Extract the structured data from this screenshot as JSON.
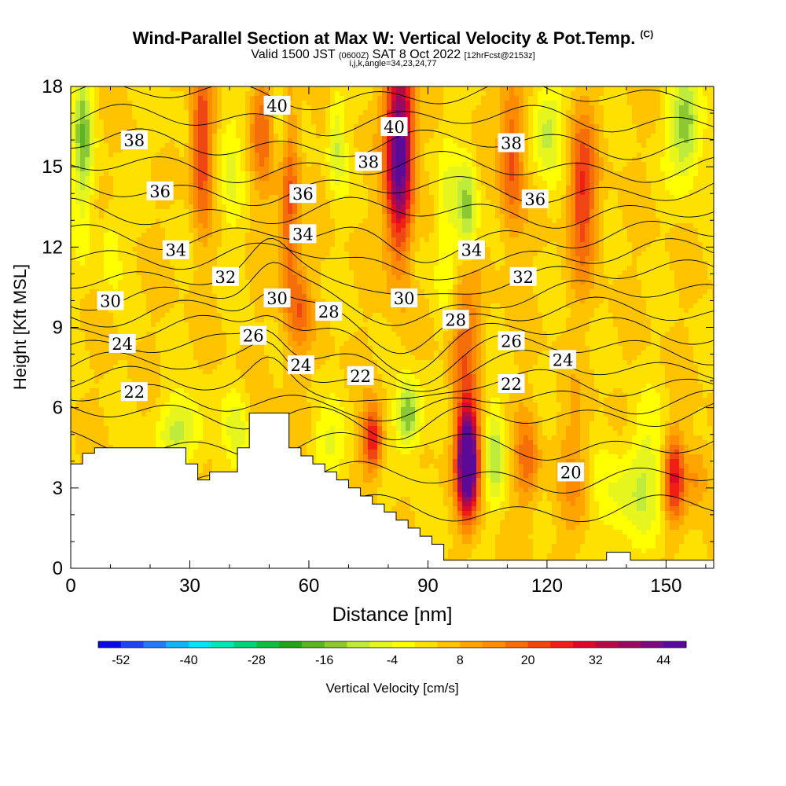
{
  "header": {
    "title": "Wind-Parallel Section at Max W: Vertical Velocity & Pot.Temp.",
    "copyright": "(C)",
    "valid_prefix": "Valid 1500 JST",
    "valid_utc": "(0600Z)",
    "valid_date": "SAT 8 Oct 2022",
    "forecast": "[12hrFcst@2153z]",
    "indices": "i,j,k,angle=34,23,24,77"
  },
  "chart_data": {
    "type": "heatmap",
    "xlabel": "Distance [nm]",
    "ylabel": "Height [Kft MSL]",
    "xlim": [
      0,
      162
    ],
    "ylim": [
      0,
      18
    ],
    "xticks": [
      0,
      30,
      60,
      90,
      120,
      150
    ],
    "yticks": [
      0,
      3,
      6,
      9,
      12,
      15,
      18
    ],
    "colorbar": {
      "label": "Vertical Velocity [cm/s]",
      "tick_labels": [
        -52,
        -40,
        -28,
        -16,
        -4,
        8,
        20,
        32,
        44
      ],
      "min": -56,
      "max": 48,
      "step": 4,
      "colors": [
        "#0a0ae6",
        "#1e46f0",
        "#2878f5",
        "#14b4f0",
        "#00e6f0",
        "#00e6b4",
        "#00d278",
        "#14be3c",
        "#28a01e",
        "#5ab428",
        "#8cc832",
        "#beeb3c",
        "#e6f51e",
        "#ffff00",
        "#ffe100",
        "#ffc300",
        "#ffa500",
        "#ff8c00",
        "#f56e0a",
        "#f04614",
        "#f01e14",
        "#dc0a28",
        "#b40a46",
        "#960a64",
        "#780a82",
        "#5a0a96"
      ]
    },
    "terrain_kft": [
      [
        0,
        3.9
      ],
      [
        3,
        3.9
      ],
      [
        3,
        4.3
      ],
      [
        6,
        4.3
      ],
      [
        6,
        4.5
      ],
      [
        29,
        4.5
      ],
      [
        29,
        3.9
      ],
      [
        32,
        3.9
      ],
      [
        32,
        3.3
      ],
      [
        35,
        3.3
      ],
      [
        35,
        3.6
      ],
      [
        42,
        3.6
      ],
      [
        42,
        4.5
      ],
      [
        45,
        4.5
      ],
      [
        45,
        5.8
      ],
      [
        55,
        5.8
      ],
      [
        55,
        4.5
      ],
      [
        58,
        4.5
      ],
      [
        58,
        4.2
      ],
      [
        61,
        4.2
      ],
      [
        61,
        3.9
      ],
      [
        64,
        3.9
      ],
      [
        64,
        3.6
      ],
      [
        67,
        3.6
      ],
      [
        67,
        3.3
      ],
      [
        70,
        3.3
      ],
      [
        70,
        3.0
      ],
      [
        73,
        3.0
      ],
      [
        73,
        2.7
      ],
      [
        76,
        2.7
      ],
      [
        76,
        2.4
      ],
      [
        79,
        2.4
      ],
      [
        79,
        2.1
      ],
      [
        82,
        2.1
      ],
      [
        82,
        1.8
      ],
      [
        85,
        1.8
      ],
      [
        85,
        1.5
      ],
      [
        88,
        1.5
      ],
      [
        88,
        1.2
      ],
      [
        91,
        1.2
      ],
      [
        91,
        0.9
      ],
      [
        94,
        0.9
      ],
      [
        94,
        0.3
      ],
      [
        135,
        0.3
      ],
      [
        135,
        0.6
      ],
      [
        141,
        0.6
      ],
      [
        141,
        0.3
      ],
      [
        162,
        0.3
      ]
    ],
    "theta_contour_labels": [
      {
        "text": "40",
        "x": 52,
        "y": 17.3
      },
      {
        "text": "40",
        "x": 81.5,
        "y": 16.5
      },
      {
        "text": "38",
        "x": 16,
        "y": 16
      },
      {
        "text": "38",
        "x": 75,
        "y": 15.2
      },
      {
        "text": "38",
        "x": 111,
        "y": 15.9
      },
      {
        "text": "36",
        "x": 22.5,
        "y": 14.1
      },
      {
        "text": "36",
        "x": 58.5,
        "y": 14
      },
      {
        "text": "36",
        "x": 117,
        "y": 13.8
      },
      {
        "text": "34",
        "x": 26.5,
        "y": 11.9
      },
      {
        "text": "34",
        "x": 58.5,
        "y": 12.5
      },
      {
        "text": "34",
        "x": 101,
        "y": 11.9
      },
      {
        "text": "32",
        "x": 39,
        "y": 10.9
      },
      {
        "text": "32",
        "x": 114,
        "y": 10.9
      },
      {
        "text": "30",
        "x": 10,
        "y": 10
      },
      {
        "text": "30",
        "x": 52,
        "y": 10.1
      },
      {
        "text": "30",
        "x": 84,
        "y": 10.1
      },
      {
        "text": "28",
        "x": 65,
        "y": 9.6
      },
      {
        "text": "28",
        "x": 97,
        "y": 9.3
      },
      {
        "text": "26",
        "x": 46,
        "y": 8.7
      },
      {
        "text": "26",
        "x": 111,
        "y": 8.5
      },
      {
        "text": "24",
        "x": 13,
        "y": 8.4
      },
      {
        "text": "24",
        "x": 58,
        "y": 7.6
      },
      {
        "text": "24",
        "x": 124,
        "y": 7.8
      },
      {
        "text": "22",
        "x": 16,
        "y": 6.6
      },
      {
        "text": "22",
        "x": 73,
        "y": 7.2
      },
      {
        "text": "22",
        "x": 111,
        "y": 6.9
      },
      {
        "text": "20",
        "x": 126,
        "y": 3.6
      }
    ]
  }
}
